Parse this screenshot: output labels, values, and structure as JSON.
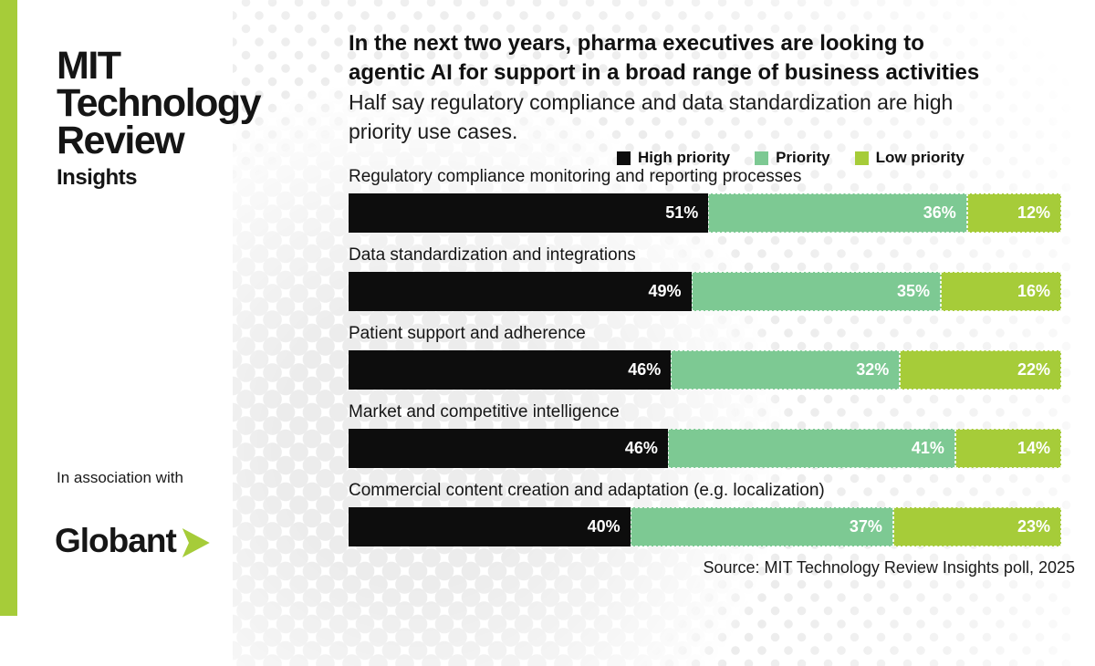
{
  "colors": {
    "accent_lime": "#a6cc39",
    "priority_green": "#7dc993",
    "high_priority_black": "#0d0d0d",
    "dot_gray": "#ececec"
  },
  "brand": {
    "logo_line1": "MIT",
    "logo_line2": "Technology",
    "logo_line3": "Review",
    "logo_sub": "Insights",
    "association_label": "In association with",
    "partner_name": "Globant"
  },
  "header": {
    "title_line1": "In the next two years, pharma executives are looking to",
    "title_line2": "agentic AI for support in a broad range of business activities",
    "subtitle_line1": "Half say regulatory compliance and data standardization are high",
    "subtitle_line2": "priority use cases."
  },
  "footer": {
    "source": "Source: MIT Technology Review Insights poll, 2025"
  },
  "chart_data": {
    "type": "bar",
    "orientation": "horizontal",
    "stacked": true,
    "unit": "%",
    "value_labels": "inside right of each segment, white bold, % suffix",
    "legend_position": "top-right of subtitle",
    "categories": [
      "Regulatory compliance monitoring and reporting processes",
      "Data standardization and integrations",
      "Patient support and adherence",
      "Market and competitive intelligence",
      "Commercial content creation and adaptation (e.g. localization)"
    ],
    "series": [
      {
        "name": "High priority",
        "color": "#0d0d0d",
        "values": [
          51,
          49,
          46,
          46,
          40
        ]
      },
      {
        "name": "Priority",
        "color": "#7dc993",
        "values": [
          36,
          35,
          32,
          41,
          37
        ]
      },
      {
        "name": "Low priority",
        "color": "#a6cc39",
        "values": [
          12,
          16,
          22,
          14,
          23
        ]
      }
    ]
  }
}
